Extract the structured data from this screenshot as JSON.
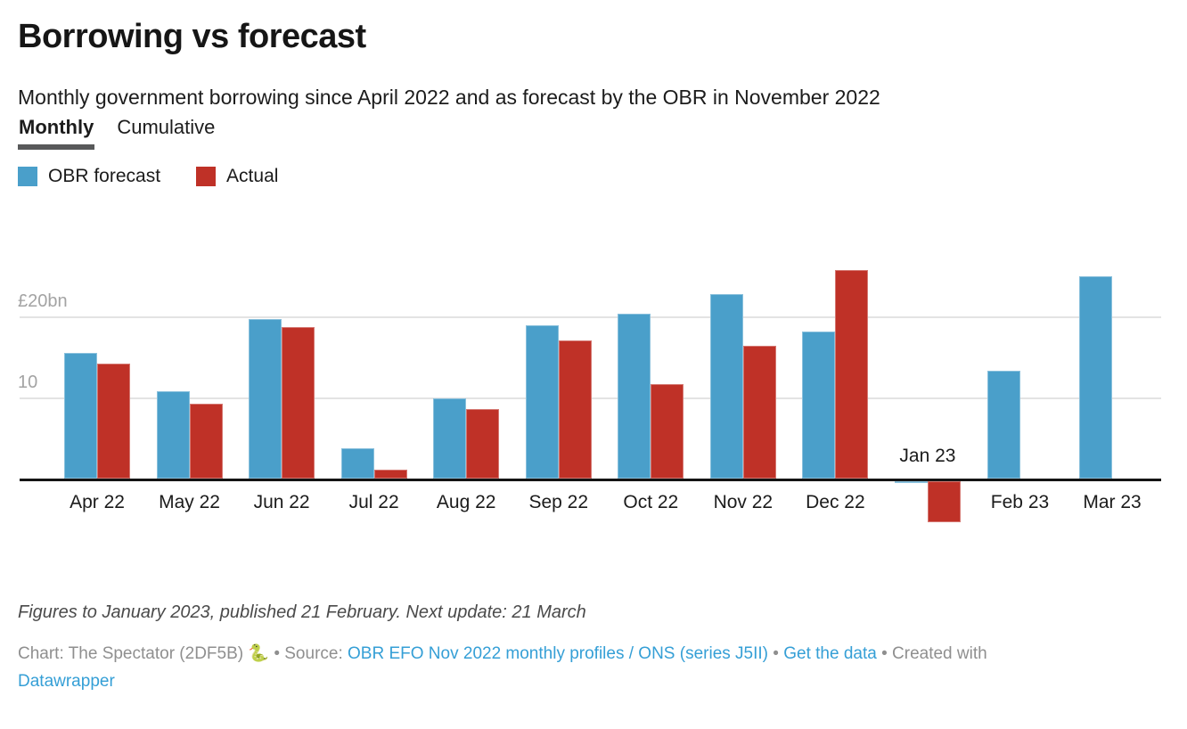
{
  "header": {
    "title": "Borrowing vs forecast",
    "subtitle": "Monthly government borrowing since April 2022 and as forecast by the OBR in November 2022",
    "tabs": [
      {
        "label": "Monthly",
        "active": true
      },
      {
        "label": "Cumulative",
        "active": false
      }
    ]
  },
  "legend": [
    {
      "label": "OBR forecast",
      "color": "#4a9fca"
    },
    {
      "label": "Actual",
      "color": "#bf3127"
    }
  ],
  "colors": {
    "bar_blue": "#4a9fca",
    "bar_red": "#bf3127",
    "link_blue": "#359fd6",
    "gridline": "#e3e3e3",
    "axis_label_gray": "#a3a3a3"
  },
  "chart_data": {
    "type": "bar",
    "title": "Borrowing vs forecast",
    "categories": [
      "Apr 22",
      "May 22",
      "Jun 22",
      "Jul 22",
      "Aug 22",
      "Sep 22",
      "Oct 22",
      "Nov 22",
      "Dec 22",
      "Jan 23",
      "Feb 23",
      "Mar 23"
    ],
    "series": [
      {
        "name": "OBR forecast",
        "color": "#4a9fca",
        "values": [
          15.6,
          10.8,
          19.8,
          3.8,
          10.0,
          19.0,
          20.5,
          22.9,
          18.3,
          -0.4,
          13.4,
          25.1
        ]
      },
      {
        "name": "Actual",
        "color": "#bf3127",
        "values": [
          14.3,
          9.3,
          18.8,
          1.1,
          8.6,
          17.2,
          11.7,
          16.5,
          25.9,
          -5.4,
          null,
          null
        ]
      }
    ],
    "unit": "£bn",
    "y_ticks": [
      {
        "value": 10,
        "label": "10"
      },
      {
        "value": 20,
        "label": "£20bn"
      }
    ],
    "ylim": [
      -6.5,
      27
    ],
    "grid": "horizontal",
    "legend_position": "top-left"
  },
  "footer": {
    "note": "Figures to January 2023, published 21 February. Next update: 21 March",
    "credit_segments": [
      {
        "text": "Chart: The Spectator (2DF5B) ",
        "style": "muted"
      },
      {
        "text": "🐍",
        "style": "emoji"
      },
      {
        "text": " • Source: ",
        "style": "muted"
      },
      {
        "text": "OBR EFO Nov 2022 monthly profiles / ONS (series J5II)",
        "style": "link",
        "name": "source-link"
      },
      {
        "text": " • ",
        "style": "muted"
      },
      {
        "text": "Get the data",
        "style": "link",
        "name": "get-data-link"
      },
      {
        "text": " • ",
        "style": "muted"
      },
      {
        "text": "Created with",
        "style": "muted"
      },
      {
        "text": "",
        "style": "break"
      },
      {
        "text": "Datawrapper",
        "style": "link",
        "name": "datawrapper-link"
      }
    ]
  }
}
